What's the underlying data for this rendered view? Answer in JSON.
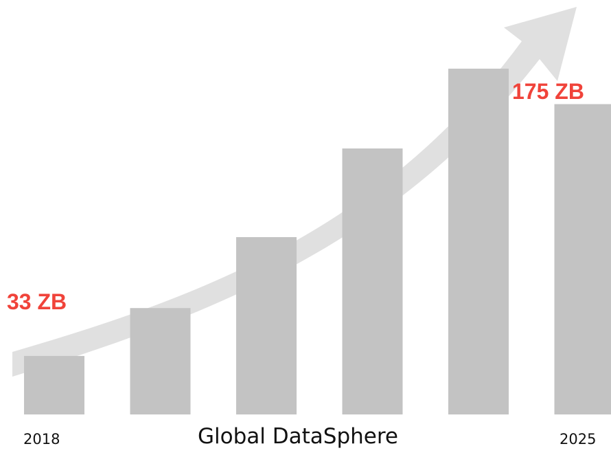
{
  "chart_data": {
    "type": "bar",
    "title": "Global DataSphere",
    "categories": [
      "2018",
      "",
      "",
      "",
      "",
      "2025"
    ],
    "values": [
      33,
      60,
      100,
      150,
      195,
      175
    ],
    "visible_tick_labels": {
      "first": "2018",
      "last": "2025"
    },
    "annotations": {
      "start": "33 ZB",
      "end": "175 ZB"
    },
    "trend_arrow": "rising",
    "grid": false,
    "legend": "none"
  },
  "colors": {
    "bar": "#c3c3c3",
    "arrow": "#e0e0e0",
    "annotation": "#f0433a",
    "text": "#111111"
  },
  "icons": {
    "trend": "upward-curved-arrow-icon"
  }
}
